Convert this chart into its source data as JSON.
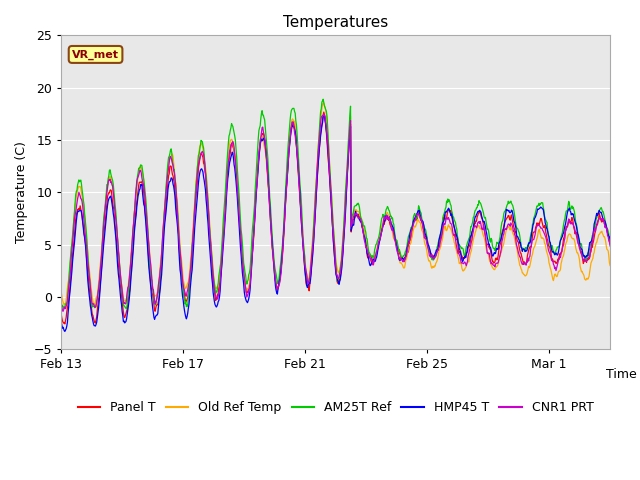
{
  "title": "Temperatures",
  "xlabel": "Time",
  "ylabel": "Temperature (C)",
  "ylim": [
    -5,
    25
  ],
  "yticks": [
    -5,
    0,
    5,
    10,
    15,
    20,
    25
  ],
  "date_labels": [
    "Feb 13",
    "Feb 17",
    "Feb 21",
    "Feb 25",
    "Mar 1"
  ],
  "date_ticks": [
    0,
    4,
    8,
    12,
    16
  ],
  "total_days": 18,
  "annotation_text": "VR_met",
  "plot_bg_color": "#e8e8e8",
  "series": [
    {
      "label": "Panel T",
      "color": "#ff0000",
      "lw": 0.9
    },
    {
      "label": "Old Ref Temp",
      "color": "#ffaa00",
      "lw": 0.9
    },
    {
      "label": "AM25T Ref",
      "color": "#00cc00",
      "lw": 0.9
    },
    {
      "label": "HMP45 T",
      "color": "#0000ff",
      "lw": 0.9
    },
    {
      "label": "CNR1 PRT",
      "color": "#cc00cc",
      "lw": 0.9
    }
  ],
  "legend_fontsize": 9,
  "title_fontsize": 11
}
